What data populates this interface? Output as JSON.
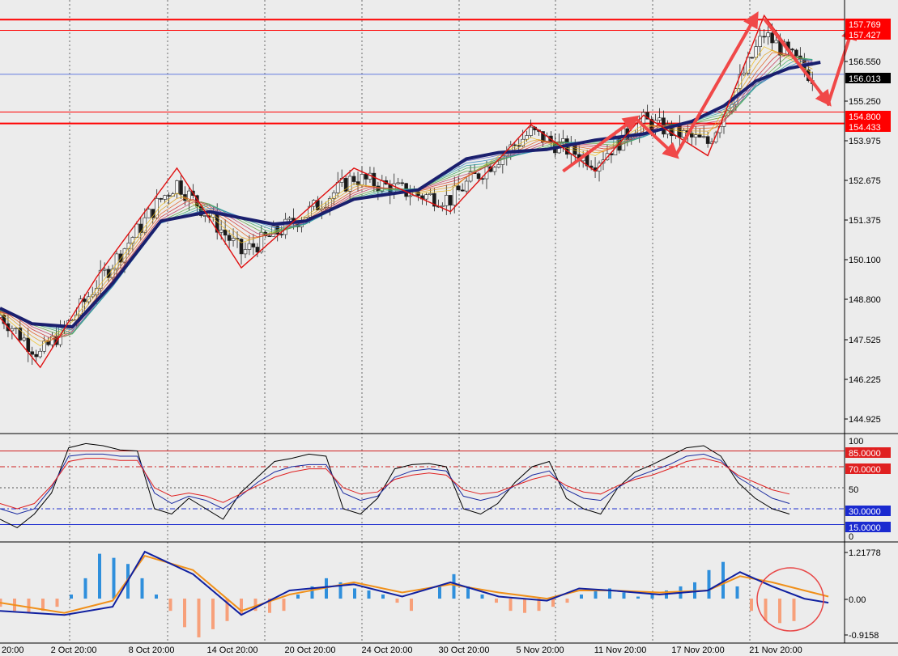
{
  "colors": {
    "background": "#ececec",
    "hline": "#ff0000",
    "current_price": "#3355dd",
    "ribbon_slow": "#1a1f6e",
    "zigzag": "#e01010",
    "arrow": "#f04848",
    "macd_hist_pos": "#2f8fdc",
    "macd_hist_neg": "#f7a07a",
    "macd_line": "#1020a0",
    "signal_line": "#f0901a"
  },
  "chart_data": [
    {
      "type": "line",
      "title": "",
      "symbol_panel": "price",
      "y_ticks": [
        "157.769",
        "157.427",
        "156.550",
        "156.013",
        "155.250",
        "154.800",
        "154.433",
        "153.975",
        "152.675",
        "151.375",
        "150.100",
        "148.800",
        "147.525",
        "146.225",
        "144.925"
      ],
      "ylim": [
        144.5,
        158.4
      ],
      "current_price": 156.013,
      "horizontal_levels": [
        157.769,
        157.427,
        154.8,
        154.433
      ],
      "zigzag": {
        "x": [
          0,
          5,
          12,
          22,
          30,
          44,
          56,
          66,
          74,
          80,
          88,
          95,
          99,
          103
        ],
        "y": [
          148.2,
          146.6,
          149.5,
          153.0,
          149.8,
          153.0,
          151.6,
          154.4,
          152.9,
          154.7,
          153.4,
          157.9,
          156.5,
          155.0
        ]
      },
      "arrows": [
        {
          "from": [
            70,
            152.9
          ],
          "to": [
            79,
            154.6
          ]
        },
        {
          "from": [
            79,
            154.6
          ],
          "to": [
            84,
            153.4
          ]
        },
        {
          "from": [
            84,
            153.4
          ],
          "to": [
            94,
            157.9
          ]
        },
        {
          "from": [
            95,
            157.8
          ],
          "to": [
            103,
            155.1
          ]
        },
        {
          "from": [
            103,
            155.1
          ],
          "to": [
            106,
            157.5
          ]
        }
      ],
      "slow_ma": {
        "x": [
          0,
          4,
          9,
          14,
          20,
          26,
          34,
          38,
          44,
          52,
          58,
          62,
          68,
          74,
          80,
          86,
          90,
          94,
          98,
          102
        ],
        "y": [
          148.5,
          148.0,
          147.9,
          149.3,
          151.3,
          151.6,
          151.2,
          151.3,
          152.0,
          152.3,
          153.3,
          153.5,
          153.6,
          153.9,
          154.1,
          154.5,
          155.0,
          155.8,
          156.2,
          156.4
        ]
      },
      "x_ticks": [
        "20:00",
        "2 Oct 20:00",
        "8 Oct 20:00",
        "14 Oct 20:00",
        "20 Oct 20:00",
        "24 Oct 20:00",
        "30 Oct 20:00",
        "5 Nov 20:00",
        "11 Nov 20:00",
        "17 Nov 20:00",
        "21 Nov 20:00"
      ]
    },
    {
      "type": "line",
      "title": "",
      "symbol_panel": "oscillator",
      "ylim": [
        0,
        100
      ],
      "y_ticks": [
        "100",
        "85.0000",
        "70.0000",
        "50",
        "30.0000",
        "15.0000",
        "0"
      ],
      "levels": [
        85,
        70,
        50,
        30,
        15
      ],
      "series": [
        {
          "values": [
            20,
            12,
            25,
            45,
            88,
            92,
            90,
            86,
            85,
            30,
            25,
            40,
            30,
            20,
            45,
            60,
            75,
            78,
            82,
            80,
            30,
            25,
            40,
            68,
            72,
            73,
            70,
            30,
            25,
            35,
            55,
            70,
            75,
            40,
            30,
            25,
            50,
            65,
            72,
            80,
            88,
            90,
            80,
            55,
            40,
            30,
            25
          ]
        },
        {
          "values": [
            30,
            25,
            30,
            50,
            80,
            82,
            82,
            80,
            80,
            45,
            35,
            42,
            38,
            30,
            42,
            55,
            65,
            70,
            72,
            72,
            45,
            38,
            42,
            60,
            66,
            68,
            66,
            42,
            38,
            42,
            52,
            62,
            66,
            48,
            40,
            38,
            50,
            60,
            66,
            72,
            80,
            82,
            76,
            60,
            50,
            40,
            35
          ]
        },
        {
          "values": [
            35,
            30,
            35,
            52,
            75,
            78,
            78,
            76,
            76,
            50,
            42,
            45,
            42,
            36,
            44,
            52,
            60,
            65,
            68,
            68,
            50,
            44,
            46,
            58,
            62,
            64,
            62,
            48,
            44,
            46,
            52,
            58,
            62,
            52,
            46,
            44,
            52,
            58,
            62,
            68,
            75,
            78,
            74,
            62,
            55,
            48,
            44
          ]
        }
      ]
    },
    {
      "type": "bar",
      "title": "",
      "symbol_panel": "macd",
      "ylim": [
        -1.05,
        1.35
      ],
      "y_ticks": [
        "1.21778",
        "0.00",
        "-0.9158"
      ],
      "histogram": [
        -0.2,
        -0.3,
        -0.35,
        -0.3,
        -0.2,
        0.1,
        0.5,
        1.1,
        1.0,
        0.85,
        0.5,
        0.1,
        -0.3,
        -0.7,
        -0.95,
        -0.75,
        -0.55,
        -0.4,
        -0.3,
        -0.35,
        -0.3,
        0.1,
        0.3,
        0.5,
        0.4,
        0.25,
        0.2,
        0.1,
        -0.1,
        -0.3,
        0.0,
        0.3,
        0.6,
        0.3,
        0.1,
        -0.1,
        -0.3,
        -0.35,
        -0.3,
        -0.2,
        -0.1,
        0.1,
        0.2,
        0.25,
        0.15,
        0.05,
        0.1,
        0.2,
        0.3,
        0.4,
        0.7,
        0.9,
        0.3,
        -0.3,
        -0.55,
        -0.6,
        -0.55
      ],
      "macd_line": {
        "x": [
          0,
          8,
          14,
          18,
          24,
          30,
          36,
          44,
          50,
          56,
          62,
          68,
          72,
          76,
          82,
          88,
          92,
          96,
          100,
          103
        ],
        "y": [
          -0.3,
          -0.4,
          -0.2,
          1.15,
          0.6,
          -0.4,
          0.2,
          0.35,
          0.05,
          0.4,
          0.05,
          -0.05,
          0.25,
          0.2,
          0.1,
          0.2,
          0.65,
          0.3,
          0.0,
          -0.1
        ]
      },
      "signal_line": {
        "x": [
          0,
          8,
          14,
          18,
          24,
          30,
          36,
          44,
          50,
          56,
          62,
          68,
          72,
          76,
          82,
          88,
          92,
          96,
          100,
          103
        ],
        "y": [
          -0.1,
          -0.35,
          -0.05,
          1.05,
          0.7,
          -0.3,
          0.1,
          0.4,
          0.15,
          0.35,
          0.15,
          0.0,
          0.2,
          0.2,
          0.15,
          0.2,
          0.55,
          0.4,
          0.2,
          0.05
        ]
      },
      "annotation": "circle"
    }
  ]
}
